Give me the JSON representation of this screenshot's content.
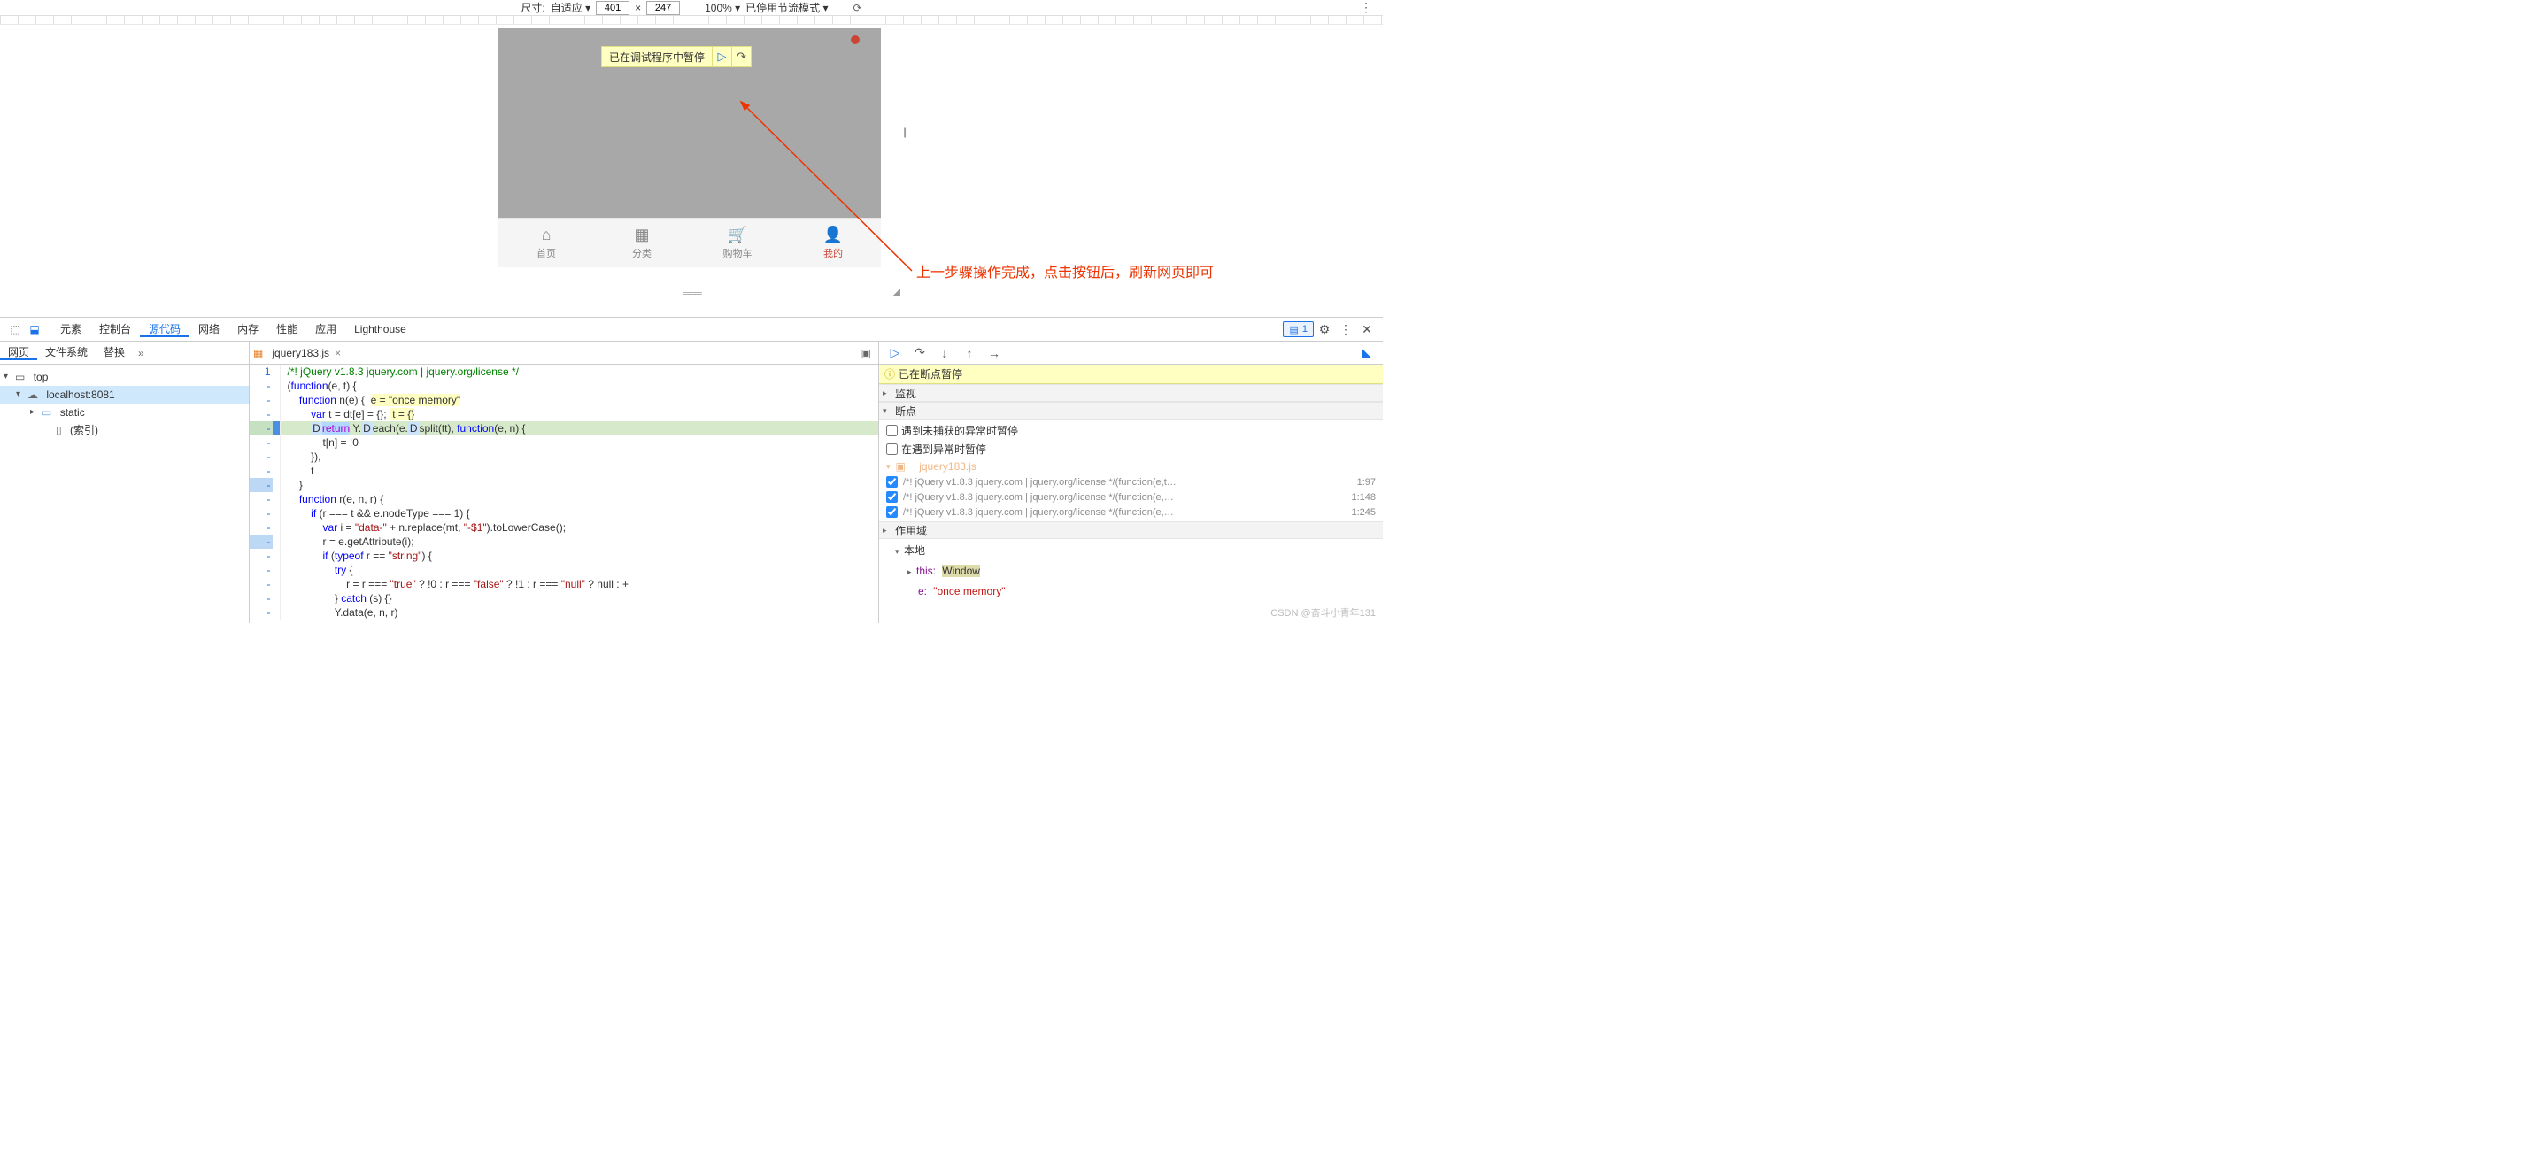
{
  "deviceBar": {
    "sizeLabel": "尺寸:",
    "modeLabel": "自适应",
    "width": "401",
    "x": "×",
    "height": "247",
    "zoom": "100%",
    "throttle": "已停用节流模式"
  },
  "pauseOverlay": {
    "message": "已在调试程序中暂停"
  },
  "annotation": "上一步骤操作完成，点击按钮后，刷新网页即可",
  "bottomNav": [
    {
      "icon": "⌂",
      "label": "首页",
      "active": false
    },
    {
      "icon": "▦",
      "label": "分类",
      "active": false
    },
    {
      "icon": "🛒",
      "label": "购物车",
      "active": false
    },
    {
      "icon": "👤",
      "label": "我的",
      "active": true
    }
  ],
  "dtTabs": {
    "items": [
      "元素",
      "控制台",
      "源代码",
      "网络",
      "内存",
      "性能",
      "应用",
      "Lighthouse"
    ],
    "active": "源代码",
    "badgeCount": "1"
  },
  "navTabs": {
    "items": [
      "网页",
      "文件系统",
      "替换"
    ],
    "active": "网页"
  },
  "tree": {
    "top": "top",
    "host": "localhost:8081",
    "folder": "static",
    "file": "(索引)"
  },
  "file": {
    "name": "jquery183.js"
  },
  "code": {
    "startLine": 1,
    "execLine": 6,
    "lines": [
      {
        "n": "1",
        "html": "<span class='cmt'>/*! jQuery v1.8.3 jquery.com | jquery.org/license */</span>",
        "cls": ""
      },
      {
        "n": "-",
        "html": "(<span class='def'>function</span>(e, t) {",
        "cls": ""
      },
      {
        "n": "-",
        "html": "    <span class='def'>function</span> n(e) {  <span class='hl-box'>e = \"once memory\"</span>",
        "cls": ""
      },
      {
        "n": "-",
        "html": "        <span class='def'>var</span> t = dt[e] = {}; <span class='hl-box'> t = {}</span>",
        "cls": ""
      },
      {
        "n": "-",
        "html": "        <span class='pill'>D</span><span class='exec-hl'><span class='retkw'>return</span></span> Y.<span class='pill'>D</span>each(e.<span class='pill'>D</span>split(tt), <span class='def'>function</span>(e, n) {",
        "cls": "exec"
      },
      {
        "n": "-",
        "html": "            t[n] = !0",
        "cls": ""
      },
      {
        "n": "-",
        "html": "        }),",
        "cls": ""
      },
      {
        "n": "-",
        "html": "        t",
        "cls": ""
      },
      {
        "n": "-",
        "html": "    }",
        "cls": "bp"
      },
      {
        "n": "-",
        "html": "    <span class='def'>function</span> r(e, n, r) {",
        "cls": ""
      },
      {
        "n": "-",
        "html": "        <span class='def'>if</span> (r === t && e.nodeType === 1) {",
        "cls": ""
      },
      {
        "n": "-",
        "html": "            <span class='def'>var</span> i = <span class='str'>\"data-\"</span> + n.replace(mt, <span class='str'>\"-$1\"</span>).toLowerCase();",
        "cls": ""
      },
      {
        "n": "-",
        "html": "            r = e.getAttribute(i);",
        "cls": "bp"
      },
      {
        "n": "-",
        "html": "            <span class='def'>if</span> (<span class='def'>typeof</span> r == <span class='str'>\"string\"</span>) {",
        "cls": ""
      },
      {
        "n": "-",
        "html": "                <span class='def'>try</span> {",
        "cls": ""
      },
      {
        "n": "-",
        "html": "                    r = r === <span class='str'>\"true\"</span> ? !0 : r === <span class='str'>\"false\"</span> ? !1 : r === <span class='str'>\"null\"</span> ? null : +",
        "cls": ""
      },
      {
        "n": "-",
        "html": "                } <span class='def'>catch</span> (s) {}",
        "cls": ""
      },
      {
        "n": "-",
        "html": "                Y.data(e, n, r)",
        "cls": ""
      }
    ]
  },
  "dbgBanner": "已在断点暂停",
  "sections": {
    "watch": "监视",
    "breakpoints": "断点",
    "scope": "作用域",
    "pauseUnhandled": "遇到未捕获的异常时暂停",
    "pauseAny": "在遇到异常时暂停"
  },
  "bpFile": "jquery183.js",
  "bpItems": [
    {
      "txt": "/*! jQuery v1.8.3 jquery.com | jquery.org/license */(function(e,t…",
      "line": "1:97"
    },
    {
      "txt": "/*! jQuery v1.8.3 jquery.com | jquery.org/license */(function(e,…",
      "line": "1:148"
    },
    {
      "txt": "/*! jQuery v1.8.3 jquery.com | jquery.org/license */(function(e,…",
      "line": "1:245"
    }
  ],
  "scope": {
    "local": "本地",
    "thisLabel": "this:",
    "thisVal": "Window",
    "eLabel": "e:",
    "eVal": "\"once memory\""
  },
  "watermark": "CSDN @奋斗小青年131"
}
